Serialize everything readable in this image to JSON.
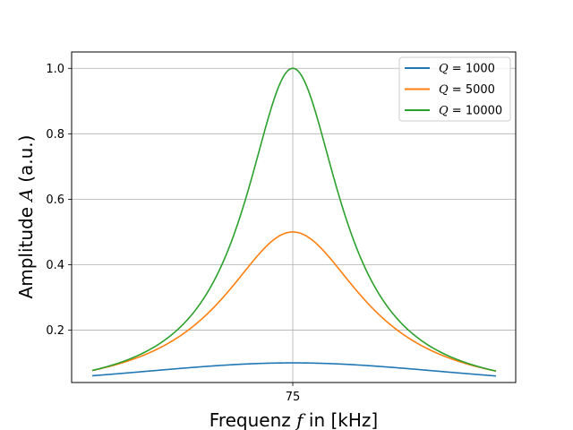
{
  "chart_data": {
    "type": "line",
    "title": "",
    "xlabel": {
      "prefix": "Frequenz ",
      "var": "f",
      "suffix": " in [kHz]"
    },
    "ylabel": {
      "prefix": "Amplitude ",
      "var": "A",
      "suffix": " (a.u.)"
    },
    "x_ticks": [
      75
    ],
    "y_ticks": [
      0.2,
      0.4,
      0.6,
      0.8,
      1.0
    ],
    "y_tick_labels": [
      "0.2",
      "0.4",
      "0.6",
      "0.8",
      "1.0"
    ],
    "ylim": [
      0.04,
      1.05
    ],
    "grid": true,
    "legend_position": "top-right",
    "resonance_frequency_khz": 75,
    "series": [
      {
        "name": "Q = 1000",
        "legend": {
          "var": "Q",
          "eq": " = ",
          "val": "1000"
        },
        "color": "#1f77b4",
        "peak": 0.1,
        "edge_value": 0.06
      },
      {
        "name": "Q = 5000",
        "legend": {
          "var": "Q",
          "eq": " = ",
          "val": "5000"
        },
        "color": "#ff7f0e",
        "peak": 0.5,
        "edge_value": 0.075
      },
      {
        "name": "Q = 10000",
        "legend": {
          "var": "Q",
          "eq": " = ",
          "val": "10000"
        },
        "color": "#2ca02c",
        "peak": 1.0,
        "edge_value": 0.075
      }
    ]
  }
}
